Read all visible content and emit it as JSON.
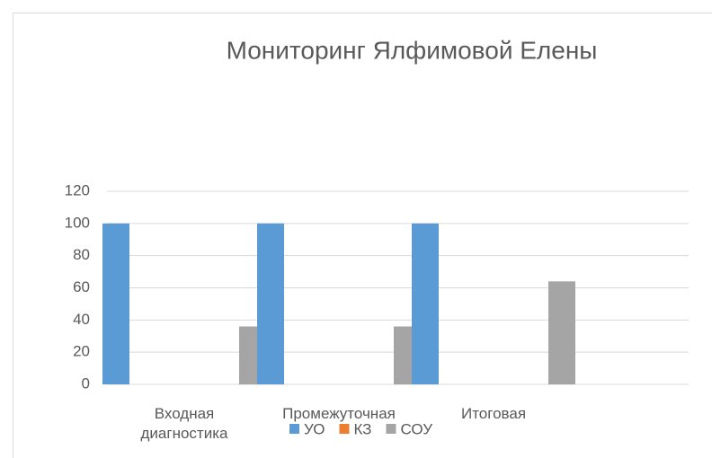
{
  "chart_data": {
    "type": "bar",
    "title": "Мониторинг Ялфимовой Елены",
    "categories": [
      "Входная диагностика",
      "Промежуточная",
      "Итоговая"
    ],
    "series": [
      {
        "name": "УО",
        "color": "#5b9bd5",
        "values": [
          100,
          100,
          100
        ]
      },
      {
        "name": "КЗ",
        "color": "#ed7d31",
        "values": [
          0,
          0,
          0
        ]
      },
      {
        "name": "СОУ",
        "color": "#a5a5a5",
        "values": [
          36,
          36,
          64
        ]
      }
    ],
    "ylim": [
      0,
      120
    ],
    "yticks": [
      0,
      20,
      40,
      60,
      80,
      100,
      120
    ],
    "grid": true,
    "legend": "bottom"
  }
}
